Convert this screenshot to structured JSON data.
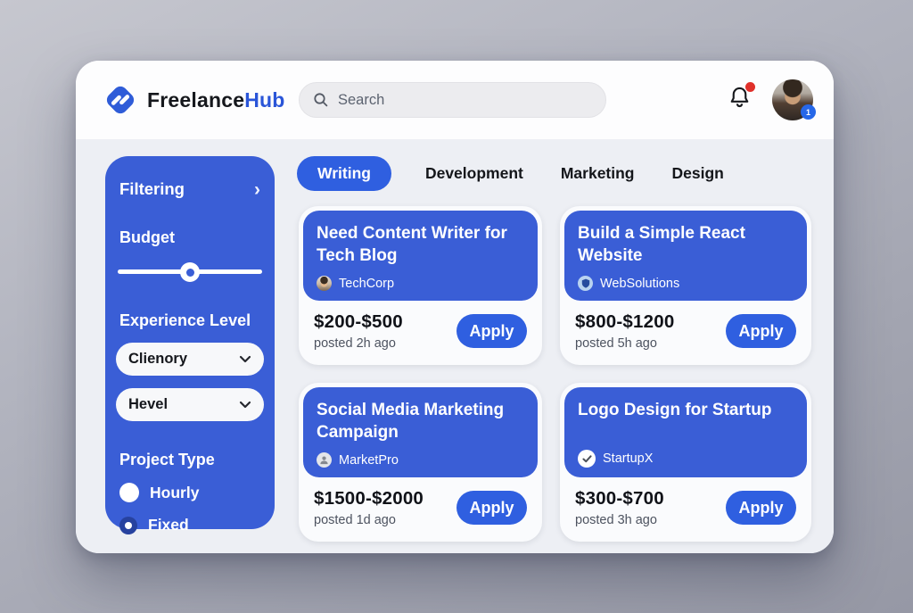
{
  "header": {
    "brand": {
      "text_primary": "Freelance",
      "text_accent": "Hub"
    },
    "search_placeholder": "Search",
    "notifications_unread": true,
    "avatar_badge": "1"
  },
  "sidebar": {
    "title": "Filtering",
    "budget_label": "Budget",
    "budget_percent": 50,
    "experience_label": "Experience Level",
    "dropdown1_value": "Clienory",
    "dropdown2_value": "Hevel",
    "project_type_label": "Project Type",
    "radios": [
      {
        "label": "Hourly",
        "selected": false
      },
      {
        "label": "Fixed",
        "selected": true
      }
    ]
  },
  "tabs": [
    {
      "label": "Writing",
      "active": true
    },
    {
      "label": "Development",
      "active": false
    },
    {
      "label": "Marketing",
      "active": false
    },
    {
      "label": "Design",
      "active": false
    }
  ],
  "labels": {
    "apply": "Apply"
  },
  "jobs": [
    {
      "title": "Need Content Writer for Tech Blog",
      "company": "TechCorp",
      "icon": "photo-avatar",
      "price": "$200-$500",
      "posted": "posted 2h ago"
    },
    {
      "title": "Build a Simple React Website",
      "company": "WebSolutions",
      "icon": "shield-logo",
      "price": "$800-$1200",
      "posted": "posted 5h ago"
    },
    {
      "title": "Social Media Marketing Campaign",
      "company": "MarketPro",
      "icon": "person",
      "price": "$1500-$2000",
      "posted": "posted 1d ago"
    },
    {
      "title": "Logo Design for Startup",
      "company": "StartupX",
      "icon": "check-badge",
      "price": "$300-$700",
      "posted": "posted 3h ago"
    }
  ],
  "colors": {
    "accent_blue": "#2f5fe0",
    "panel_blue": "#3a5ed6",
    "notification_red": "#e0302a",
    "content_bg": "#edeff4"
  }
}
